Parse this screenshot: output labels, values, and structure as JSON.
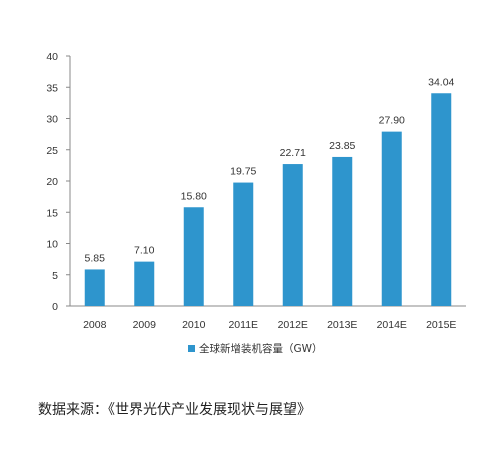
{
  "chart_data": {
    "type": "bar",
    "categories": [
      "2008",
      "2009",
      "2010",
      "2011E",
      "2012E",
      "2013E",
      "2014E",
      "2015E"
    ],
    "series": [
      {
        "name": "全球新增装机容量（GW）",
        "values": [
          5.85,
          7.1,
          15.8,
          19.75,
          22.71,
          23.85,
          27.9,
          34.04
        ],
        "labels": [
          "5.85",
          "7.10",
          "15.80",
          "19.75",
          "22.71",
          "23.85",
          "27.90",
          "34.04"
        ]
      }
    ],
    "ylim": [
      0,
      40
    ],
    "yticks": [
      "0",
      "5",
      "10",
      "15",
      "20",
      "25",
      "30",
      "35",
      "40"
    ],
    "grid": false,
    "legend": "bottom-center",
    "bar_color": "#2e95cd"
  },
  "source_text": "数据来源：《世界光伏产业发展现状与展望》"
}
